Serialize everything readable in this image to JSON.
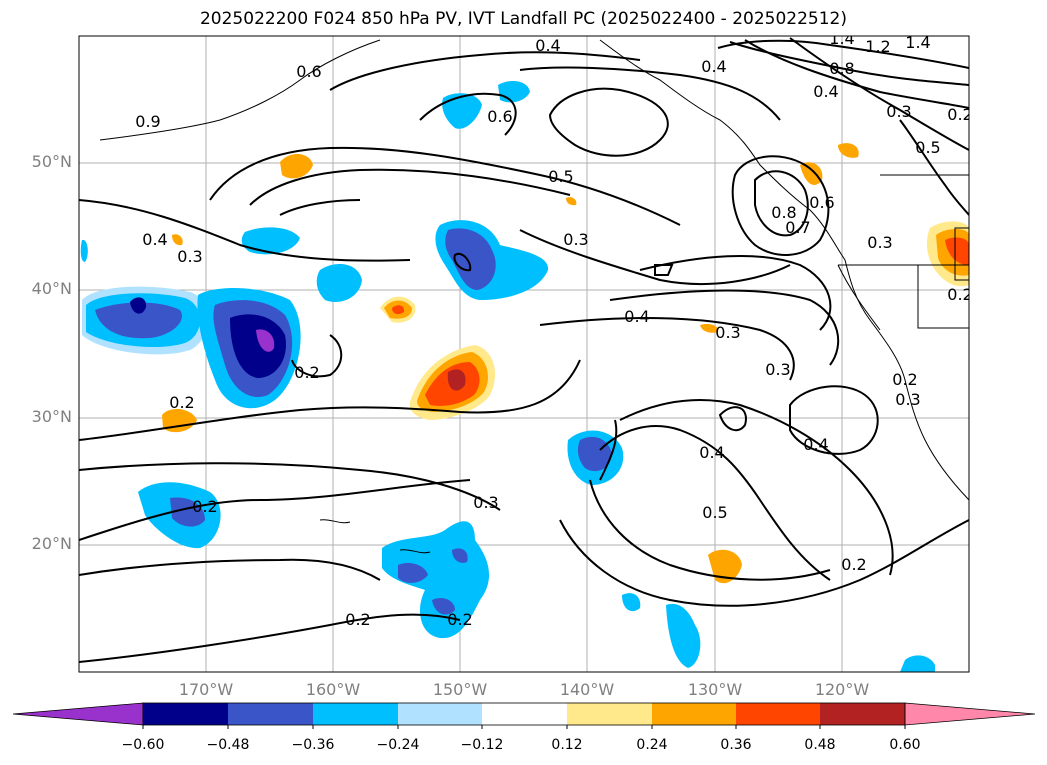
{
  "title": "2025022200 F024 850 hPa PV, IVT Landfall PC (2025022400 - 2025022512)",
  "map": {
    "projection": "PlateCarree",
    "lon_range": [
      -180,
      -110
    ],
    "lat_range": [
      10,
      60
    ],
    "gridlines": true,
    "lat_labels": [
      "50°N",
      "40°N",
      "30°N",
      "20°N"
    ],
    "lon_labels": [
      "170°W",
      "160°W",
      "150°W",
      "140°W",
      "130°W",
      "120°W"
    ],
    "contour_color": "#000000",
    "coastline_color": "#000000",
    "axis_label_color": "#808080"
  },
  "contour_labels": [
    "0.4",
    "0.6",
    "1.4",
    "1.2",
    "1.4",
    "0.8",
    "0.4",
    "0.4",
    "0.3",
    "0.5",
    "0.6",
    "0.9",
    "0.5",
    "0.3",
    "0.8",
    "0.7",
    "0.6",
    "0.3",
    "0.4",
    "0.3",
    "0.4",
    "0.3",
    "0.3",
    "0.2",
    "0.2",
    "0.3",
    "0.4",
    "0.4",
    "0.5",
    "0.2",
    "0.3",
    "0.2",
    "0.2",
    "0.2",
    "0.2",
    "0.2",
    "0.2"
  ],
  "colorbar": {
    "ticks": [
      "−0.60",
      "−0.48",
      "−0.36",
      "−0.24",
      "−0.12",
      "0.12",
      "0.24",
      "0.36",
      "0.48",
      "0.60"
    ],
    "colors": [
      "#9932cc",
      "#00008b",
      "#3a55c8",
      "#00bfff",
      "#b0e2ff",
      "#ffffff",
      "#ffe98a",
      "#ffa500",
      "#ff4500",
      "#b22222",
      "#ff88aa"
    ]
  }
}
